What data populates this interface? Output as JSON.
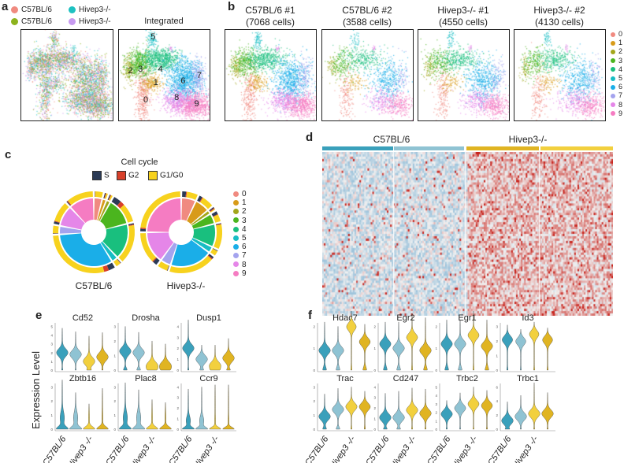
{
  "panel_letters": [
    "a",
    "b",
    "c",
    "d",
    "e",
    "f"
  ],
  "cluster_colors": [
    "#F08A80",
    "#D89B1A",
    "#A3A61A",
    "#4BB51E",
    "#19BF7E",
    "#17BDC4",
    "#1AAEE8",
    "#A4A3EE",
    "#E586E8",
    "#F57CC2"
  ],
  "panel_a": {
    "legend": [
      {
        "label": "C57BL/6",
        "color": "#F08A80"
      },
      {
        "label": "Hivep3-/-",
        "color": "#1DC1C1"
      },
      {
        "label": "C57BL/6",
        "color": "#8DB31D"
      },
      {
        "label": "Hivep3-/-",
        "color": "#C79AF0"
      }
    ],
    "integrated_title": "Integrated",
    "cluster_numbers": [
      "0",
      "1",
      "2",
      "3",
      "4",
      "5",
      "6",
      "7",
      "8",
      "9"
    ]
  },
  "panel_b": {
    "samples": [
      {
        "title": "C57BL/6 #1",
        "cells": "(7068 cells)"
      },
      {
        "title": "C57BL/6 #2",
        "cells": "(3588 cells)"
      },
      {
        "title": "Hivep3-/- #1",
        "cells": "(4550 cells)"
      },
      {
        "title": "Hivep3-/- #2",
        "cells": "(4130 cells)"
      }
    ],
    "legend": [
      "0",
      "1",
      "2",
      "3",
      "4",
      "5",
      "6",
      "7",
      "8",
      "9"
    ]
  },
  "chart_data": [
    {
      "type": "pie",
      "title": "Cell cycle",
      "cycle_legend": [
        {
          "label": "S",
          "color": "#2B3A55"
        },
        {
          "label": "G2",
          "color": "#D8402A"
        },
        {
          "label": "G1/G0",
          "color": "#F7D21E"
        }
      ],
      "cluster_legend": [
        "0",
        "1",
        "2",
        "3",
        "4",
        "5",
        "6",
        "7",
        "8",
        "9"
      ],
      "donuts": [
        {
          "label": "C57BL/6",
          "cluster_fractions": [
            0.04,
            0.02,
            0.02,
            0.13,
            0.17,
            0.03,
            0.33,
            0.04,
            0.1,
            0.12
          ],
          "s_fraction": [
            0.05,
            0.3,
            0.3,
            0.25,
            0.03,
            0.1,
            0.08,
            0.05,
            0.1,
            0.03
          ],
          "g2_fraction": [
            0.02,
            0.2,
            0.2,
            0.15,
            0.02,
            0.05,
            0.06,
            0.02,
            0.03,
            0.03
          ]
        },
        {
          "label": "Hivep3-/-",
          "cluster_fractions": [
            0.07,
            0.07,
            0.02,
            0.05,
            0.11,
            0.03,
            0.2,
            0.05,
            0.15,
            0.25
          ],
          "s_fraction": [
            0.25,
            0.2,
            0.4,
            0.3,
            0.03,
            0.1,
            0.04,
            0.05,
            0.12,
            0.04
          ],
          "g2_fraction": [
            0.05,
            0.05,
            0.3,
            0.05,
            0.02,
            0.02,
            0.02,
            0.02,
            0.03,
            0.02
          ]
        }
      ]
    },
    {
      "type": "heatmap",
      "groups": [
        {
          "label": "C57BL/6",
          "color": "#3AA0BB",
          "samples": [
            "#3AA0BB",
            "#8FC3D3"
          ]
        },
        {
          "label": "Hivep3-/-",
          "color": "#E0B422",
          "samples": [
            "#E0B422",
            "#F2D03E"
          ]
        }
      ],
      "low_color": "#9EC4DC",
      "mid_color": "#F2F2F2",
      "high_color": "#C8231C"
    },
    {
      "type": "violin",
      "ylabel": "Expression Level",
      "group_labels": [
        "C57BL/6",
        "Hivep3 -/-"
      ],
      "group_colors": [
        "#3AA0BB",
        "#8FC3D3",
        "#F2D03E",
        "#E0B422"
      ],
      "genes": [
        {
          "gene": "Cd52",
          "yticks": [
            0,
            1,
            2,
            3,
            4,
            5
          ],
          "max": [
            4.8,
            4.4,
            3.9,
            4.3
          ],
          "median": [
            2,
            1.8,
            1,
            1.5
          ]
        },
        {
          "gene": "Drosha",
          "yticks": [
            0,
            1,
            2,
            3
          ],
          "max": [
            3,
            2.6,
            2.0,
            1.8
          ],
          "median": [
            1.3,
            1.2,
            0.3,
            0.3
          ]
        },
        {
          "gene": "Dusp1",
          "yticks": [
            0,
            1,
            2,
            3,
            4
          ],
          "max": [
            4.6,
            2.3,
            2.3,
            2.9
          ],
          "median": [
            2,
            1,
            0.4,
            1.1
          ]
        },
        {
          "gene": "Zbtb16",
          "yticks": [
            0,
            1,
            2,
            3
          ],
          "max": [
            3.5,
            2.6,
            1.8,
            2.9
          ],
          "median": [
            0.2,
            0.2,
            0,
            0
          ]
        },
        {
          "gene": "Plac8",
          "yticks": [
            0,
            1,
            2,
            3
          ],
          "max": [
            3.3,
            2.8,
            2.1,
            1.9
          ],
          "median": [
            0.2,
            0.2,
            0,
            0
          ]
        },
        {
          "gene": "Ccr9",
          "yticks": [
            0,
            1,
            2,
            3,
            4
          ],
          "max": [
            3.8,
            4.0,
            4.2,
            4.2
          ],
          "median": [
            0.2,
            0.2,
            0,
            0
          ]
        },
        {
          "gene": "Hdac7",
          "yticks": [
            0,
            1,
            2
          ],
          "max": [
            2.2,
            2.0,
            2.7,
            2.1
          ],
          "median": [
            0.9,
            0.9,
            2.0,
            1.3
          ]
        },
        {
          "gene": "Egr2",
          "yticks": [
            0,
            1,
            2
          ],
          "max": [
            2.2,
            2.2,
            2.6,
            2.4
          ],
          "median": [
            1.2,
            1.0,
            1.5,
            0.9
          ]
        },
        {
          "gene": "Egr1",
          "yticks": [
            0,
            1,
            2
          ],
          "max": [
            2.3,
            2.3,
            2.7,
            2.3
          ],
          "median": [
            1.2,
            1.2,
            1.6,
            1.1
          ]
        },
        {
          "gene": "Id3",
          "yticks": [
            0,
            1,
            2,
            3
          ],
          "max": [
            3.1,
            2.8,
            3.3,
            2.9
          ],
          "median": [
            2.1,
            2.0,
            2.5,
            2.1
          ]
        },
        {
          "gene": "Trac",
          "yticks": [
            0,
            1,
            2,
            3
          ],
          "max": [
            2.5,
            2.9,
            3.0,
            2.7
          ],
          "median": [
            0.9,
            1.4,
            1.6,
            1.6
          ]
        },
        {
          "gene": "Cd247",
          "yticks": [
            0,
            1,
            2,
            3,
            4
          ],
          "max": [
            3.4,
            3.6,
            3.9,
            3.8
          ],
          "median": [
            1.1,
            1.1,
            1.8,
            1.5
          ]
        },
        {
          "gene": "Trbc2",
          "yticks": [
            0,
            1,
            2,
            3,
            4,
            5
          ],
          "max": [
            3.4,
            4.3,
            5.0,
            4.6
          ],
          "median": [
            1.8,
            2.5,
            3.0,
            2.8
          ]
        },
        {
          "gene": "Trbc1",
          "yticks": [
            0,
            2,
            4,
            6
          ],
          "max": [
            3.9,
            4.8,
            6.6,
            5.2
          ],
          "median": [
            1.2,
            1.8,
            2.2,
            2.2
          ]
        }
      ]
    }
  ]
}
